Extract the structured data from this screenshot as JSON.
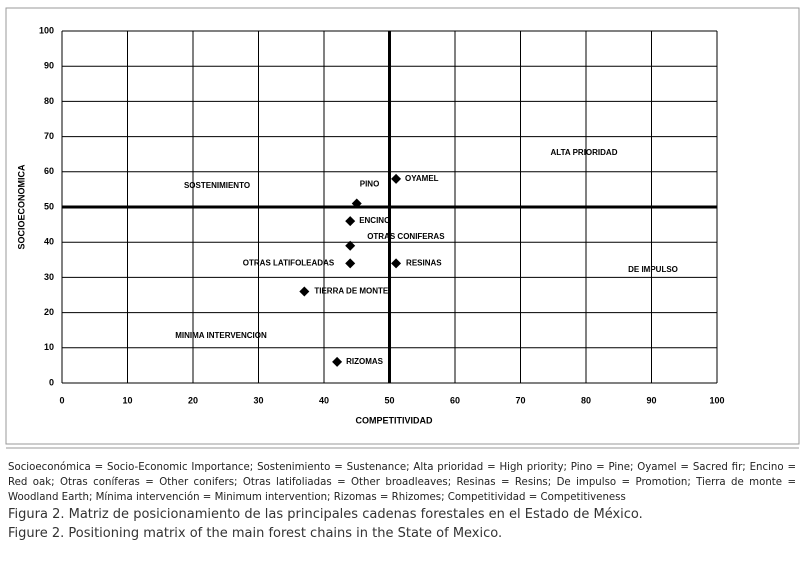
{
  "chart_data": {
    "type": "scatter",
    "x_label": "COMPETITIVIDAD",
    "y_label": "SOCIOECONOMICA",
    "x": [
      45,
      51,
      44,
      44,
      44,
      51,
      37,
      42
    ],
    "values": [
      51,
      58,
      46,
      39,
      34,
      34,
      26,
      6
    ],
    "point_labels": [
      "PINO",
      "OYAMEL",
      "ENCINO",
      "OTRAS CONIFERAS",
      "OTRAS LATIFOLEADAS",
      "RESINAS",
      "TIERRA DE MONTE",
      "RIZOMAS"
    ],
    "color": "#000000",
    "xlim": [
      0,
      100
    ],
    "ylim": [
      0,
      100
    ],
    "xticks": [
      0,
      10,
      20,
      30,
      40,
      50,
      60,
      70,
      80,
      90,
      100
    ],
    "yticks": [
      0,
      10,
      20,
      30,
      40,
      50,
      60,
      70,
      80,
      90,
      100
    ],
    "grid": true,
    "quadrant_lines": {
      "x": 50,
      "y": 50
    },
    "annotations": [
      "SOSTENIMIENTO",
      "ALTA PRIORIDAD",
      "DE IMPULSO",
      "MINIMA INTERVENCION"
    ]
  },
  "caption": {
    "note": "Socioeconómica = Socio-Economic Importance; Sostenimiento = Sustenance; Alta prioridad = High priority; Pino = Pine; Oyamel = Sacred fir; Encino = Red oak; Otras coníferas = Other conifers; Otras latifoliadas = Other broadleaves; Resinas = Resins; De impulso = Promotion; Tierra de monte = Woodland Earth; Mínima intervención = Minimum intervention; Rizomas = Rhizomes; Competitividad = Competitiveness",
    "figure_es": "Figura 2. Matriz de posicionamiento de las principales cadenas forestales en el Estado de México.",
    "figure_en": "Figure 2. Positioning matrix of the main forest chains in the State of Mexico."
  }
}
